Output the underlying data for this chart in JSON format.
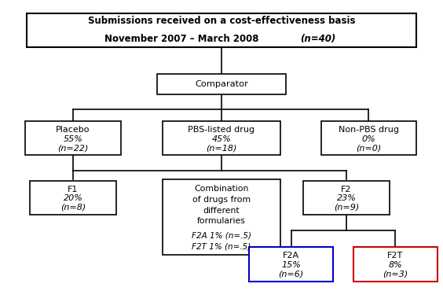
{
  "bg_color": "#ffffff",
  "title_line1": "Submissions received on a cost-effectiveness basis",
  "title_line2_main": "November 2007 – March 2008 ",
  "title_line2_italic": "(n=40)",
  "comparator_label": "Comparator",
  "placebo_label": "Placebo",
  "placebo_pct": "55%",
  "placebo_n": "(n=22)",
  "pbs_label": "PBS-listed drug",
  "pbs_pct": "45%",
  "pbs_n": "(n=18)",
  "nonpbs_label": "Non-PBS drug",
  "nonpbs_pct": "0%",
  "nonpbs_n": "(n=0)",
  "f1_label": "F1",
  "f1_pct": "20%",
  "f1_n": "(n=8)",
  "combo_lines": [
    "Combination",
    "of drugs from",
    "different",
    "formularies"
  ],
  "combo_italic1": "F2A 1% (n=.5)",
  "combo_italic2": "F2T 1% (n=.5)",
  "f2_label": "F2",
  "f2_pct": "23%",
  "f2_n": "(n=9)",
  "f2a_label": "F2A",
  "f2a_pct": "15%",
  "f2a_n": "(n=6)",
  "f2a_edge": "#0000cc",
  "f2t_label": "F2T",
  "f2t_pct": "8%",
  "f2t_n": "(n=3)",
  "f2t_edge": "#cc0000",
  "black": "#000000"
}
